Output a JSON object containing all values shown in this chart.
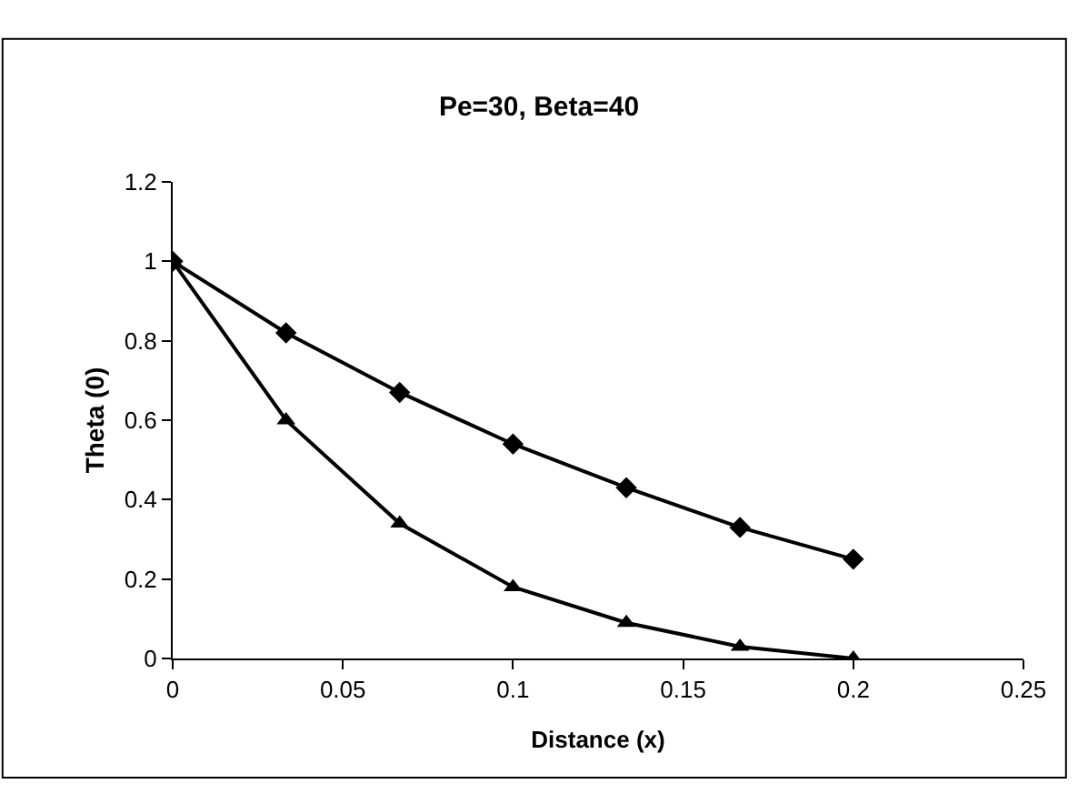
{
  "chart_data": {
    "type": "line",
    "title": "Pe=30, Beta=40",
    "xlabel": "Distance (x)",
    "ylabel": "Theta (0)",
    "x": [
      0,
      0.0333,
      0.0667,
      0.1,
      0.1333,
      0.1667,
      0.2
    ],
    "series": [
      {
        "color": "#000000",
        "marker": "diamond",
        "values": [
          1,
          0.82,
          0.67,
          0.54,
          0.43,
          0.33,
          0.25
        ]
      },
      {
        "color": "#000000",
        "marker": "triangle",
        "values": [
          1,
          0.6,
          0.34,
          0.18,
          0.09,
          0.03,
          0
        ]
      }
    ],
    "xlim": [
      0,
      0.25
    ],
    "xticks": [
      0,
      0.05,
      0.1,
      0.15,
      0.2,
      0.25
    ],
    "ylim": [
      0,
      1.2
    ],
    "yticks": [
      0,
      0.2,
      0.4,
      0.6,
      0.8,
      1,
      1.2
    ],
    "grid": false,
    "line_style": "solid"
  }
}
